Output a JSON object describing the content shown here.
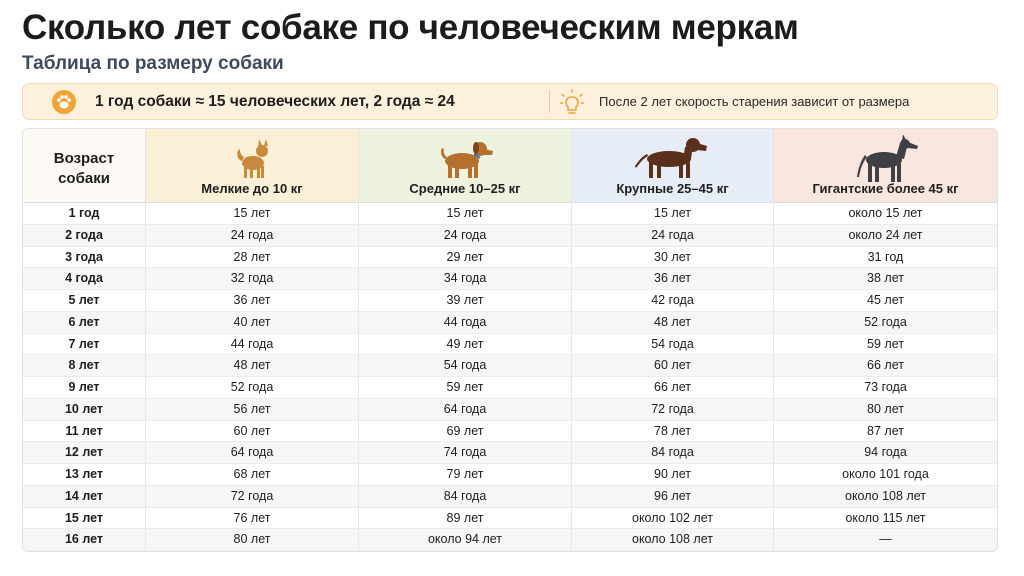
{
  "header": {
    "title": "Сколько лет собаке по человеческим меркам",
    "subtitle": "Таблица по размеру собаки"
  },
  "banner": {
    "left": "1 год собаки ≈ 15 человеческих лет, 2 года ≈ 24",
    "right": "После 2 лет скорость старения зависит от размера"
  },
  "table": {
    "header": [
      "Возраст собаки",
      "Мелкие до 10 кг",
      "Средние 10–25 кг",
      "Крупные 25–45 кг",
      "Гигантские более 45 кг"
    ],
    "rows": [
      [
        "1 год",
        "15 лет",
        "15 лет",
        "15 лет",
        "около 15 лет"
      ],
      [
        "2 года",
        "24 года",
        "24 года",
        "24 года",
        "около 24 лет"
      ],
      [
        "3 года",
        "28 лет",
        "29 лет",
        "30 лет",
        "31 год"
      ],
      [
        "4 года",
        "32 года",
        "34 года",
        "36 лет",
        "38 лет"
      ],
      [
        "5 лет",
        "36 лет",
        "39 лет",
        "42 года",
        "45 лет"
      ],
      [
        "6 лет",
        "40 лет",
        "44 года",
        "48 лет",
        "52 года"
      ],
      [
        "7 лет",
        "44 года",
        "49 лет",
        "54 года",
        "59 лет"
      ],
      [
        "8 лет",
        "48 лет",
        "54 года",
        "60 лет",
        "66 лет"
      ],
      [
        "9 лет",
        "52 года",
        "59 лет",
        "66 лет",
        "73 года"
      ],
      [
        "10 лет",
        "56 лет",
        "64 года",
        "72 года",
        "80 лет"
      ],
      [
        "11 лет",
        "60 лет",
        "69 лет",
        "78 лет",
        "87 лет"
      ],
      [
        "12 лет",
        "64 года",
        "74 года",
        "84 года",
        "94 года"
      ],
      [
        "13 лет",
        "68 лет",
        "79 лет",
        "90 лет",
        "около 101 года"
      ],
      [
        "14 лет",
        "72 года",
        "84 года",
        "96 лет",
        "около 108 лет"
      ],
      [
        "15 лет",
        "76 лет",
        "89 лет",
        "около 102 лет",
        "около 115 лет"
      ],
      [
        "16 лет",
        "80 лет",
        "около 94 лет",
        "около 108 лет",
        "—"
      ]
    ]
  }
}
